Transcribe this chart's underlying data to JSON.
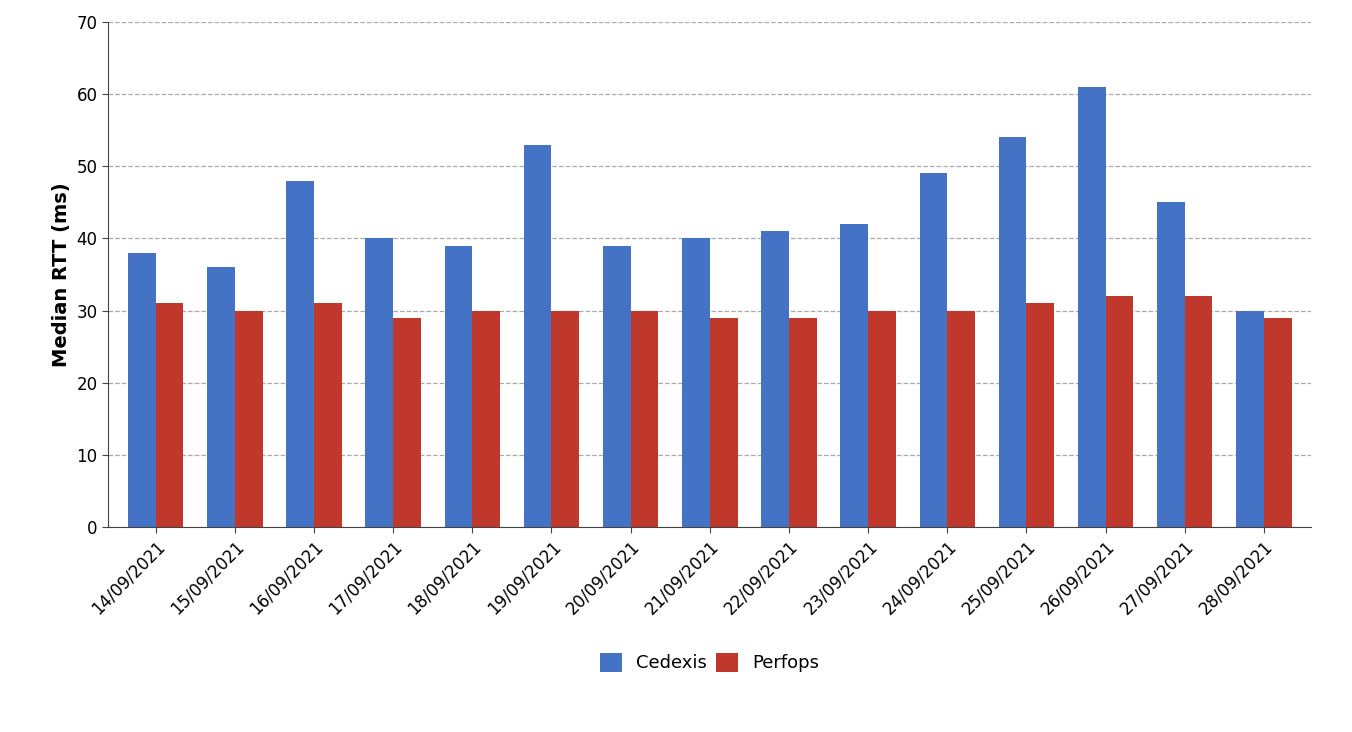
{
  "dates": [
    "14/09/2021",
    "15/09/2021",
    "16/09/2021",
    "17/09/2021",
    "18/09/2021",
    "19/09/2021",
    "20/09/2021",
    "21/09/2021",
    "22/09/2021",
    "23/09/2021",
    "24/09/2021",
    "25/09/2021",
    "26/09/2021",
    "27/09/2021",
    "28/09/2021"
  ],
  "cedexis": [
    38,
    36,
    48,
    40,
    39,
    53,
    39,
    40,
    41,
    42,
    49,
    54,
    61,
    45,
    30
  ],
  "perfops": [
    31,
    30,
    31,
    29,
    30,
    30,
    30,
    29,
    29,
    30,
    30,
    31,
    32,
    32,
    29
  ],
  "cedexis_color": "#4472C4",
  "perfops_color": "#C0382B",
  "ylabel": "Median RTT (ms)",
  "ylim": [
    0,
    70
  ],
  "yticks": [
    0,
    10,
    20,
    30,
    40,
    50,
    60,
    70
  ],
  "legend_labels": [
    "Cedexis",
    "Perfops"
  ],
  "bar_width": 0.35,
  "background_color": "#ffffff",
  "grid_color": "#aaaaaa",
  "tick_label_fontsize": 12,
  "ylabel_fontsize": 14,
  "legend_fontsize": 13
}
